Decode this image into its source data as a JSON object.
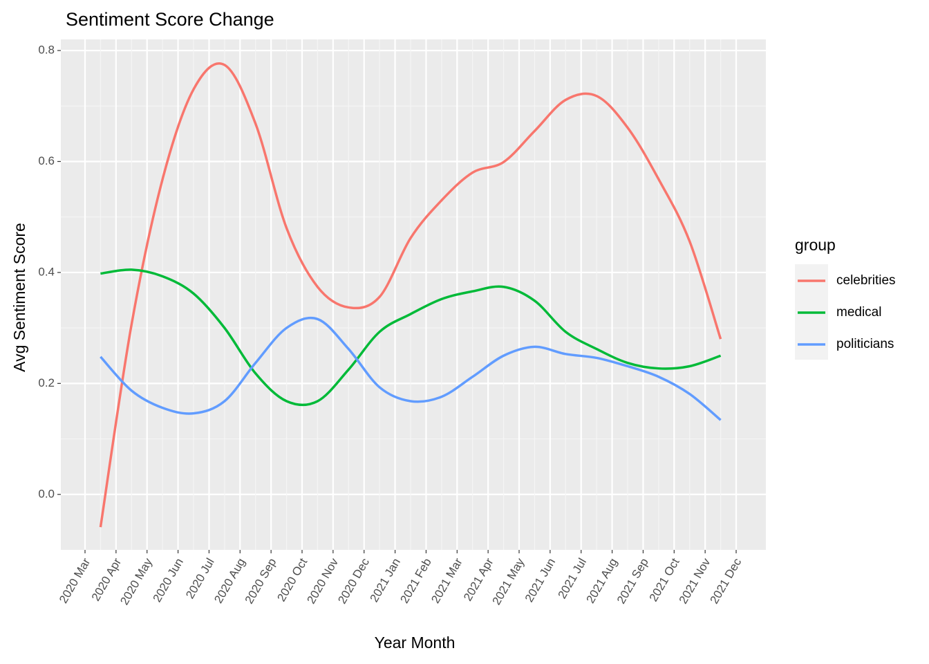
{
  "chart_data": {
    "type": "line",
    "title": "Sentiment Score Change",
    "x_label": "Year Month",
    "y_label": "Avg Sentiment Score",
    "legend_title": "group",
    "x": [
      "2020 Mar",
      "2020 Apr",
      "2020 May",
      "2020 Jun",
      "2020 Jul",
      "2020 Aug",
      "2020 Sep",
      "2020 Oct",
      "2020 Nov",
      "2020 Dec",
      "2021 Jan",
      "2021 Feb",
      "2021 Mar",
      "2021 Apr",
      "2021 May",
      "2021 Jun",
      "2021 Jul",
      "2021 Aug",
      "2021 Sep",
      "2021 Oct",
      "2021 Nov"
    ],
    "xticks": [
      "2020 Mar",
      "2020 Apr",
      "2020 May",
      "2020 Jun",
      "2020 Jul",
      "2020 Aug",
      "2020 Sep",
      "2020 Oct",
      "2020 Nov",
      "2020 Dec",
      "2021 Jan",
      "2021 Feb",
      "2021 Mar",
      "2021 Apr",
      "2021 May",
      "2021 Jun",
      "2021 Jul",
      "2021 Aug",
      "2021 Sep",
      "2021 Oct",
      "2021 Nov",
      "2021 Dec"
    ],
    "ylim": [
      -0.1,
      0.82
    ],
    "yticks": [
      {
        "value": 0,
        "label": "0.0"
      },
      0.2,
      0.4,
      0.6,
      0.8
    ],
    "grid": true,
    "legend_position": "right",
    "series": [
      {
        "name": "celebrities",
        "color": "#F8766D",
        "values": [
          -0.059,
          0.306,
          0.568,
          0.73,
          0.774,
          0.668,
          0.48,
          0.374,
          0.337,
          0.356,
          0.462,
          0.53,
          0.58,
          0.599,
          0.655,
          0.711,
          0.718,
          0.661,
          0.568,
          0.456,
          0.28
        ]
      },
      {
        "name": "medical",
        "color": "#00BA38",
        "values": [
          0.398,
          0.405,
          0.393,
          0.362,
          0.3,
          0.218,
          0.168,
          0.168,
          0.225,
          0.293,
          0.325,
          0.352,
          0.366,
          0.374,
          0.349,
          0.293,
          0.262,
          0.237,
          0.227,
          0.231,
          0.25
        ]
      },
      {
        "name": "politicians",
        "color": "#619CFF",
        "values": [
          0.248,
          0.187,
          0.156,
          0.146,
          0.168,
          0.237,
          0.3,
          0.316,
          0.262,
          0.193,
          0.168,
          0.176,
          0.212,
          0.25,
          0.266,
          0.253,
          0.246,
          0.231,
          0.212,
          0.181,
          0.134
        ]
      }
    ]
  }
}
